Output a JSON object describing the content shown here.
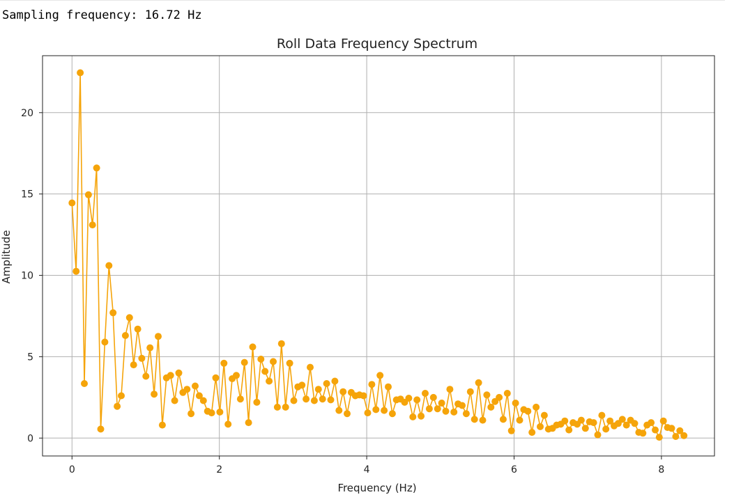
{
  "output": {
    "text": "Sampling frequency: 16.72 Hz"
  },
  "chart_data": {
    "type": "line",
    "title": "Roll Data Frequency Spectrum",
    "xlabel": "Frequency (Hz)",
    "ylabel": "Amplitude",
    "xlim": [
      -0.4,
      8.72
    ],
    "ylim": [
      -1.1,
      23.5
    ],
    "xticks": [
      0,
      2,
      4,
      6,
      8
    ],
    "yticks": [
      0,
      5,
      10,
      15,
      20
    ],
    "grid": true,
    "series": [
      {
        "color": "#f5a40a",
        "marker": "circle",
        "x": [
          0,
          0.0557,
          0.1115,
          0.1672,
          0.223,
          0.2787,
          0.3345,
          0.3902,
          0.4459,
          0.5017,
          0.5574,
          0.6132,
          0.6689,
          0.7247,
          0.7804,
          0.8361,
          0.8919,
          0.9476,
          1.0034,
          1.0591,
          1.1148,
          1.1706,
          1.2263,
          1.2821,
          1.3378,
          1.3936,
          1.4493,
          1.505,
          1.5608,
          1.6165,
          1.6723,
          1.728,
          1.7837,
          1.8395,
          1.8952,
          1.951,
          2.0067,
          2.0625,
          2.1182,
          2.1739,
          2.2297,
          2.2854,
          2.3412,
          2.3969,
          2.4527,
          2.5084,
          2.5641,
          2.6199,
          2.6756,
          2.7314,
          2.7871,
          2.8428,
          2.8986,
          2.9543,
          3.0101,
          3.0658,
          3.1216,
          3.1773,
          3.233,
          3.2888,
          3.3445,
          3.4003,
          3.456,
          3.5117,
          3.5675,
          3.6232,
          3.679,
          3.7347,
          3.7905,
          3.8462,
          3.9019,
          3.9577,
          4.0134,
          4.0692,
          4.1249,
          4.1807,
          4.2364,
          4.2921,
          4.3479,
          4.4036,
          4.4594,
          4.5151,
          4.5708,
          4.6266,
          4.6823,
          4.7381,
          4.7938,
          4.8496,
          4.9053,
          4.961,
          5.0168,
          5.0725,
          5.1283,
          5.184,
          5.2397,
          5.2955,
          5.3512,
          5.407,
          5.4627,
          5.5185,
          5.5742,
          5.6299,
          5.6857,
          5.7414,
          5.7972,
          5.8529,
          5.9087,
          5.9644,
          6.0201,
          6.0759,
          6.1316,
          6.1874,
          6.2431,
          6.2988,
          6.3546,
          6.4103,
          6.4661,
          6.5218,
          6.5776,
          6.6333,
          6.689,
          6.7448,
          6.8005,
          6.8563,
          6.912,
          6.9677,
          7.0235,
          7.0792,
          7.135,
          7.1907,
          7.2465,
          7.3022,
          7.3579,
          7.4137,
          7.4694,
          7.5252,
          7.5809,
          7.6367,
          7.6924,
          7.7481,
          7.8039,
          7.8596,
          7.9154,
          7.9711,
          8.0268,
          8.0826,
          8.1383,
          8.1941,
          8.2498,
          8.3056
        ],
        "y": [
          14.45,
          10.25,
          22.45,
          3.35,
          14.95,
          13.1,
          16.6,
          0.55,
          5.9,
          10.6,
          7.7,
          1.95,
          2.6,
          6.3,
          7.4,
          4.5,
          6.7,
          4.9,
          3.8,
          5.55,
          2.7,
          6.25,
          0.8,
          3.7,
          3.85,
          2.3,
          4.0,
          2.8,
          3.0,
          1.5,
          3.2,
          2.6,
          2.3,
          1.65,
          1.55,
          3.7,
          1.6,
          4.6,
          0.85,
          3.65,
          3.85,
          2.4,
          4.65,
          0.95,
          5.6,
          2.2,
          4.85,
          4.1,
          3.5,
          4.7,
          1.9,
          5.8,
          1.9,
          4.6,
          2.3,
          3.15,
          3.25,
          2.4,
          4.35,
          2.3,
          3.0,
          2.4,
          3.35,
          2.35,
          3.5,
          1.7,
          2.85,
          1.5,
          2.8,
          2.6,
          2.65,
          2.6,
          1.55,
          3.3,
          1.75,
          3.85,
          1.7,
          3.15,
          1.5,
          2.35,
          2.4,
          2.2,
          2.45,
          1.3,
          2.35,
          1.35,
          2.75,
          1.8,
          2.5,
          1.8,
          2.15,
          1.65,
          3.0,
          1.6,
          2.1,
          2.0,
          1.5,
          2.85,
          1.15,
          3.4,
          1.1,
          2.65,
          1.9,
          2.25,
          2.5,
          1.15,
          2.75,
          0.45,
          2.15,
          1.1,
          1.75,
          1.65,
          0.35,
          1.9,
          0.7,
          1.4,
          0.55,
          0.6,
          0.8,
          0.85,
          1.05,
          0.5,
          0.95,
          0.85,
          1.1,
          0.6,
          1.0,
          0.95,
          0.2,
          1.4,
          0.55,
          1.05,
          0.75,
          0.9,
          1.15,
          0.8,
          1.1,
          0.9,
          0.35,
          0.3,
          0.8,
          0.95,
          0.5,
          0.05,
          1.05,
          0.65,
          0.6,
          0.1,
          0.45,
          0.15
        ]
      }
    ]
  }
}
